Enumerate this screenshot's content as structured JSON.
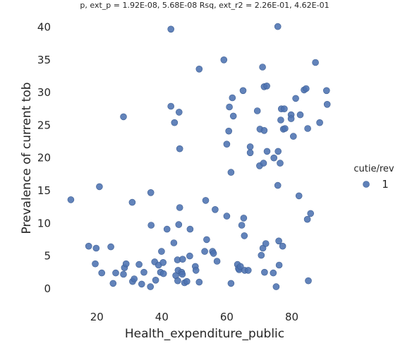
{
  "chart_data": {
    "type": "scatter",
    "title": "p, ext_p = 1.92E-08, 5.68E-08 Rsq, ext_r2 = 2.26E-01, 4.62E-01",
    "xlabel": "Health_expenditure_public",
    "ylabel": "Prevalence of current tob",
    "xlim": [
      8,
      94
    ],
    "ylim": [
      -2.5,
      42
    ],
    "xticks": [
      20,
      40,
      60,
      80
    ],
    "yticks": [
      0,
      5,
      10,
      15,
      20,
      25,
      30,
      35,
      40
    ],
    "grid": false,
    "legend": {
      "title": "cutie/rev",
      "position": "right",
      "entries": [
        "1"
      ]
    },
    "series": [
      {
        "name": "1",
        "color": "#4c72b0",
        "points": [
          [
            12,
            13.6
          ],
          [
            17.5,
            6.5
          ],
          [
            19.5,
            3.8
          ],
          [
            19.8,
            6.2
          ],
          [
            20.8,
            15.6
          ],
          [
            21.5,
            2.4
          ],
          [
            24.3,
            6.4
          ],
          [
            25,
            0.8
          ],
          [
            25.8,
            2.4
          ],
          [
            28.2,
            2.2
          ],
          [
            28.2,
            26.3
          ],
          [
            28.5,
            3.2
          ],
          [
            29,
            3.8
          ],
          [
            30.9,
            13.2
          ],
          [
            31,
            1.1
          ],
          [
            31.5,
            1.5
          ],
          [
            33,
            3.7
          ],
          [
            33.8,
            0.7
          ],
          [
            34.5,
            2.5
          ],
          [
            36.5,
            0.3
          ],
          [
            36.6,
            14.7
          ],
          [
            36.7,
            9.7
          ],
          [
            37.8,
            4.1
          ],
          [
            38.1,
            1.3
          ],
          [
            39,
            3.6
          ],
          [
            39.6,
            2.5
          ],
          [
            39.9,
            5.7
          ],
          [
            40.4,
            4
          ],
          [
            40.5,
            2.3
          ],
          [
            41.6,
            9.1
          ],
          [
            42.8,
            39.7
          ],
          [
            42.8,
            27.9
          ],
          [
            43.7,
            7
          ],
          [
            43.9,
            25.4
          ],
          [
            44.3,
            2
          ],
          [
            44.8,
            4.4
          ],
          [
            44.9,
            1.2
          ],
          [
            45,
            2.8
          ],
          [
            45.2,
            9.8
          ],
          [
            45.3,
            27
          ],
          [
            45.5,
            21.4
          ],
          [
            45.5,
            12.4
          ],
          [
            46.1,
            2.5
          ],
          [
            46.3,
            2.2
          ],
          [
            46.4,
            4.5
          ],
          [
            47,
            0.9
          ],
          [
            47.7,
            1.1
          ],
          [
            48.6,
            5
          ],
          [
            48.7,
            9.1
          ],
          [
            50.3,
            3.4
          ],
          [
            50.5,
            2.8
          ],
          [
            51.5,
            1
          ],
          [
            51.5,
            33.6
          ],
          [
            53.2,
            5.7
          ],
          [
            53.5,
            13.5
          ],
          [
            53.8,
            7.5
          ],
          [
            55.6,
            5.7
          ],
          [
            55.9,
            5.4
          ],
          [
            56.4,
            12.1
          ],
          [
            57,
            4.2
          ],
          [
            59.1,
            35
          ],
          [
            60,
            22.1
          ],
          [
            60,
            11.1
          ],
          [
            60.6,
            24.1
          ],
          [
            60.8,
            27.8
          ],
          [
            61.3,
            17.8
          ],
          [
            61.3,
            0.8
          ],
          [
            61.7,
            29.2
          ],
          [
            62,
            26.4
          ],
          [
            63.3,
            3.7
          ],
          [
            63.6,
            3.1
          ],
          [
            63.8,
            2.9
          ],
          [
            64.2,
            3.4
          ],
          [
            64.6,
            9.7
          ],
          [
            65,
            30.3
          ],
          [
            65.2,
            10.8
          ],
          [
            65.4,
            8.1
          ],
          [
            65.5,
            2.8
          ],
          [
            66.6,
            2.8
          ],
          [
            67.2,
            21.7
          ],
          [
            67.2,
            20.8
          ],
          [
            69.4,
            27.2
          ],
          [
            70.1,
            18.8
          ],
          [
            70.2,
            24.4
          ],
          [
            70.6,
            5.1
          ],
          [
            71,
            33.9
          ],
          [
            71.1,
            6.2
          ],
          [
            71.3,
            19.2
          ],
          [
            71.5,
            24.2
          ],
          [
            71.5,
            30.9
          ],
          [
            71.6,
            2.5
          ],
          [
            72,
            6.9
          ],
          [
            72.3,
            31
          ],
          [
            72.4,
            21
          ],
          [
            74.3,
            2.4
          ],
          [
            74.5,
            20
          ],
          [
            75.2,
            0.3
          ],
          [
            75.7,
            40.1
          ],
          [
            75.7,
            15.8
          ],
          [
            75.8,
            21
          ],
          [
            76,
            7.3
          ],
          [
            76.1,
            3.6
          ],
          [
            76.4,
            19.2
          ],
          [
            76.6,
            25.8
          ],
          [
            76.8,
            27.5
          ],
          [
            77.2,
            6.5
          ],
          [
            77.4,
            24.4
          ],
          [
            77.7,
            27.5
          ],
          [
            77.9,
            24.5
          ],
          [
            79.8,
            26.6
          ],
          [
            79.8,
            26
          ],
          [
            80.5,
            23.3
          ],
          [
            81.2,
            29.1
          ],
          [
            82.2,
            14.2
          ],
          [
            82.6,
            26.6
          ],
          [
            83.8,
            30.4
          ],
          [
            84.4,
            30.6
          ],
          [
            84.8,
            10.6
          ],
          [
            84.9,
            24.5
          ],
          [
            85.1,
            1.2
          ],
          [
            85.8,
            11.5
          ],
          [
            87.3,
            34.6
          ],
          [
            88.6,
            25.4
          ],
          [
            90.7,
            30.3
          ],
          [
            90.9,
            28.2
          ]
        ]
      }
    ]
  }
}
